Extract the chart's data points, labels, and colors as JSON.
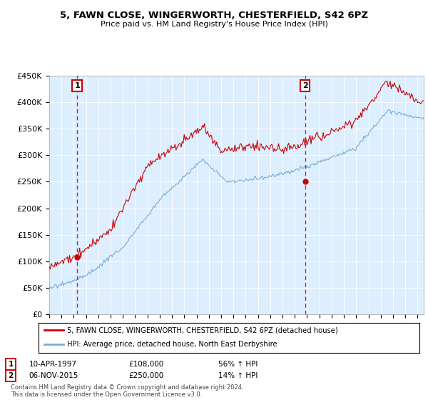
{
  "title": "5, FAWN CLOSE, WINGERWORTH, CHESTERFIELD, S42 6PZ",
  "subtitle": "Price paid vs. HM Land Registry's House Price Index (HPI)",
  "ylim": [
    0,
    450000
  ],
  "yticks": [
    0,
    50000,
    100000,
    150000,
    200000,
    250000,
    300000,
    350000,
    400000,
    450000
  ],
  "ytick_labels": [
    "£0",
    "£50K",
    "£100K",
    "£150K",
    "£200K",
    "£250K",
    "£300K",
    "£350K",
    "£400K",
    "£450K"
  ],
  "sale1": {
    "date_num": 1997.27,
    "price": 108000,
    "label": "1",
    "date_str": "10-APR-1997",
    "price_str": "£108,000",
    "hpi_str": "56% ↑ HPI"
  },
  "sale2": {
    "date_num": 2015.84,
    "price": 250000,
    "label": "2",
    "date_str": "06-NOV-2015",
    "price_str": "£250,000",
    "hpi_str": "14% ↑ HPI"
  },
  "line1_color": "#cc0000",
  "line2_color": "#7aadd4",
  "bg_color": "#ddeeff",
  "legend1": "5, FAWN CLOSE, WINGERWORTH, CHESTERFIELD, S42 6PZ (detached house)",
  "legend2": "HPI: Average price, detached house, North East Derbyshire",
  "footnote": "Contains HM Land Registry data © Crown copyright and database right 2024.\nThis data is licensed under the Open Government Licence v3.0.",
  "xlim": [
    1995.0,
    2025.5
  ],
  "xticks": [
    1995,
    1996,
    1997,
    1998,
    1999,
    2000,
    2001,
    2002,
    2003,
    2004,
    2005,
    2006,
    2007,
    2008,
    2009,
    2010,
    2011,
    2012,
    2013,
    2014,
    2015,
    2016,
    2017,
    2018,
    2019,
    2020,
    2021,
    2022,
    2023,
    2024,
    2025
  ]
}
